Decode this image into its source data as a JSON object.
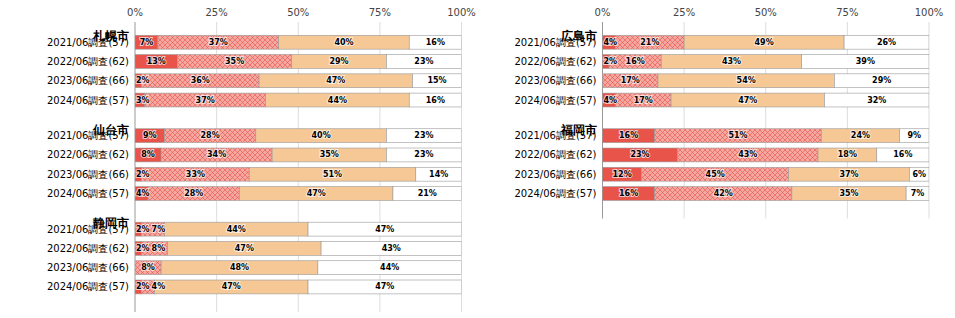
{
  "chart_data": [
    {
      "type": "bar",
      "orientation": "horizontal",
      "stacked": true,
      "data_labels": true,
      "grid": true,
      "title": "札幌市",
      "categories": [
        "2021/06調査(57)",
        "2022/06調査(62)",
        "2023/06調査(66)",
        "2024/06調査(57)"
      ],
      "xlim": [
        0,
        100
      ],
      "xticks": [
        {
          "value": 0,
          "label": "0%"
        },
        {
          "value": 25,
          "label": "25%"
        },
        {
          "value": 50,
          "label": "50%"
        },
        {
          "value": 75,
          "label": "75%"
        },
        {
          "value": 100,
          "label": "100%"
        }
      ],
      "series": [
        {
          "color": "#e8534a",
          "values": [
            7,
            13,
            2,
            3
          ],
          "value_labels": [
            "7%",
            "13%",
            "2%",
            "3%"
          ]
        },
        {
          "color": "#f5a8a0",
          "values": [
            37,
            35,
            36,
            37
          ],
          "value_labels": [
            "37%",
            "35%",
            "36%",
            "37%"
          ]
        },
        {
          "color": "#f5c896",
          "values": [
            40,
            29,
            47,
            44
          ],
          "value_labels": [
            "40%",
            "29%",
            "47%",
            "44%"
          ]
        },
        {
          "color": "#ffffff",
          "values": [
            16,
            23,
            15,
            16
          ],
          "value_labels": [
            "16%",
            "23%",
            "15%",
            "16%"
          ]
        }
      ]
    },
    {
      "type": "bar",
      "orientation": "horizontal",
      "stacked": true,
      "data_labels": true,
      "grid": true,
      "tick_labels": "y",
      "title": "仙台市",
      "categories": [
        "2021/06調査(57)",
        "2022/06調査(62)",
        "2023/06調査(66)",
        "2024/06調査(57)"
      ],
      "xlim": [
        0,
        100
      ],
      "xticks": [
        {
          "value": 0,
          "label": "0%"
        },
        {
          "value": 25,
          "label": "25%"
        },
        {
          "value": 50,
          "label": "50%"
        },
        {
          "value": 75,
          "label": "75%"
        },
        {
          "value": 100,
          "label": "100%"
        }
      ],
      "series": [
        {
          "color": "#e8534a",
          "values": [
            9,
            8,
            2,
            4
          ],
          "value_labels": [
            "9%",
            "8%",
            "2%",
            "4%"
          ]
        },
        {
          "color": "#f5a8a0",
          "values": [
            28,
            34,
            33,
            28
          ],
          "value_labels": [
            "28%",
            "34%",
            "33%",
            "28%"
          ]
        },
        {
          "color": "#f5c896",
          "values": [
            40,
            35,
            51,
            47
          ],
          "value_labels": [
            "40%",
            "35%",
            "51%",
            "47%"
          ]
        },
        {
          "color": "#ffffff",
          "values": [
            23,
            23,
            14,
            21
          ],
          "value_labels": [
            "23%",
            "23%",
            "14%",
            "21%"
          ]
        }
      ]
    },
    {
      "type": "bar",
      "orientation": "horizontal",
      "stacked": true,
      "data_labels": true,
      "grid": true,
      "tick_labels": "y",
      "title": "静岡市",
      "categories": [
        "2021/06調査(57)",
        "2022/06調査(62)",
        "2023/06調査(66)",
        "2024/06調査(57)"
      ],
      "xlim": [
        0,
        100
      ],
      "xticks": [
        {
          "value": 0,
          "label": "0%"
        },
        {
          "value": 25,
          "label": "25%"
        },
        {
          "value": 50,
          "label": "50%"
        },
        {
          "value": 75,
          "label": "75%"
        },
        {
          "value": 100,
          "label": "100%"
        }
      ],
      "series": [
        {
          "color": "#e8534a",
          "values": [
            2,
            2,
            0,
            2
          ],
          "value_labels": [
            "2%",
            "2%",
            null,
            "2%"
          ]
        },
        {
          "color": "#f5a8a0",
          "values": [
            7,
            8,
            8,
            4
          ],
          "value_labels": [
            "7%",
            "8%",
            "8%",
            "4%"
          ]
        },
        {
          "color": "#f5c896",
          "values": [
            44,
            47,
            48,
            47
          ],
          "value_labels": [
            "44%",
            "47%",
            "48%",
            "47%"
          ]
        },
        {
          "color": "#ffffff",
          "values": [
            47,
            43,
            44,
            47
          ],
          "value_labels": [
            "47%",
            "43%",
            "44%",
            "47%"
          ]
        }
      ]
    },
    {
      "type": "bar",
      "orientation": "horizontal",
      "stacked": true,
      "data_labels": true,
      "grid": true,
      "title": "広島市",
      "categories": [
        "2021/06調査(57)",
        "2022/06調査(62)",
        "2023/06調査(66)",
        "2024/06調査(57)"
      ],
      "xlim": [
        0,
        100
      ],
      "xticks": [
        {
          "value": 0,
          "label": "0%"
        },
        {
          "value": 25,
          "label": "25%"
        },
        {
          "value": 50,
          "label": "50%"
        },
        {
          "value": 75,
          "label": "75%"
        },
        {
          "value": 100,
          "label": "100%"
        }
      ],
      "series": [
        {
          "color": "#e8534a",
          "values": [
            4,
            2,
            0,
            4
          ],
          "value_labels": [
            "4%",
            "2%",
            null,
            "4%"
          ]
        },
        {
          "color": "#f5a8a0",
          "values": [
            21,
            16,
            17,
            17
          ],
          "value_labels": [
            "21%",
            "16%",
            "17%",
            "17%"
          ]
        },
        {
          "color": "#f5c896",
          "values": [
            49,
            43,
            54,
            47
          ],
          "value_labels": [
            "49%",
            "43%",
            "54%",
            "47%"
          ]
        },
        {
          "color": "#ffffff",
          "values": [
            26,
            39,
            29,
            32
          ],
          "value_labels": [
            "26%",
            "39%",
            "29%",
            "32%"
          ]
        }
      ]
    },
    {
      "type": "bar",
      "orientation": "horizontal",
      "stacked": true,
      "data_labels": true,
      "grid": true,
      "tick_labels": "y",
      "title": "福岡市",
      "categories": [
        "2021/06調査(57)",
        "2022/06調査(62)",
        "2023/06調査(66)",
        "2024/06調査(57)"
      ],
      "xlim": [
        0,
        100
      ],
      "xticks": [
        {
          "value": 0,
          "label": "0%"
        },
        {
          "value": 25,
          "label": "25%"
        },
        {
          "value": 50,
          "label": "50%"
        },
        {
          "value": 75,
          "label": "75%"
        },
        {
          "value": 100,
          "label": "100%"
        }
      ],
      "series": [
        {
          "color": "#e8534a",
          "values": [
            16,
            23,
            12,
            16
          ],
          "value_labels": [
            "16%",
            "23%",
            "12%",
            "16%"
          ]
        },
        {
          "color": "#f5a8a0",
          "values": [
            51,
            43,
            45,
            42
          ],
          "value_labels": [
            "51%",
            "43%",
            "45%",
            "42%"
          ]
        },
        {
          "color": "#f5c896",
          "values": [
            24,
            18,
            37,
            35
          ],
          "value_labels": [
            "24%",
            "18%",
            "37%",
            "35%"
          ]
        },
        {
          "color": "#ffffff",
          "values": [
            9,
            16,
            6,
            7
          ],
          "value_labels": [
            "9%",
            "16%",
            "6%",
            "7%"
          ]
        }
      ]
    }
  ]
}
